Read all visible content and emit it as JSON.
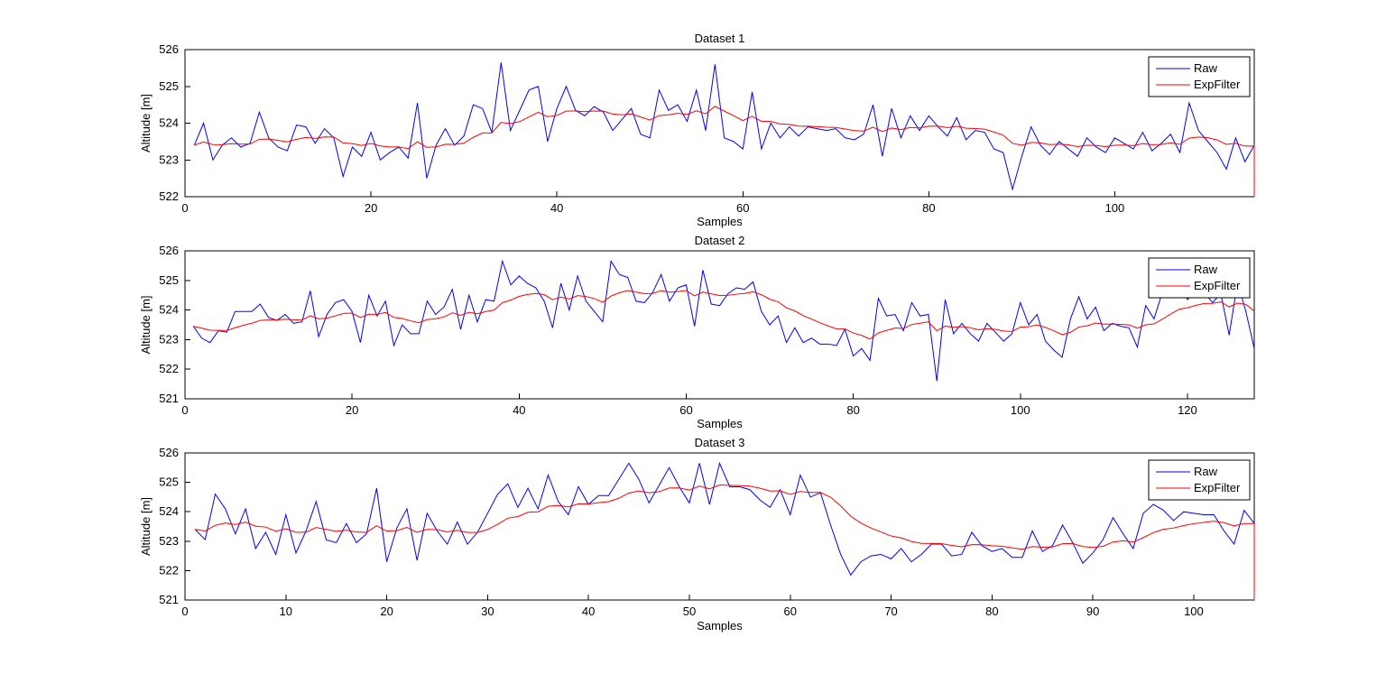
{
  "figure": {
    "background": "#ffffff",
    "axis_color": "#000000",
    "raw_color": "#0000ff",
    "filter_color": "#ff0000"
  },
  "chart_data": [
    {
      "type": "line",
      "title": "Dataset 1",
      "xlabel": "Samples",
      "ylabel": "Altitude [m]",
      "xlim": [
        0,
        115
      ],
      "ylim": [
        522,
        526
      ],
      "xticks": [
        0,
        20,
        40,
        60,
        80,
        100
      ],
      "yticks": [
        522,
        523,
        524,
        525,
        526
      ],
      "grid": false,
      "legend": {
        "position": "top-right",
        "entries": [
          "Raw",
          "ExpFilter"
        ]
      },
      "series": [
        {
          "name": "Raw",
          "color": "#0000ff",
          "x_start": 1,
          "values": [
            523.4,
            524.0,
            523.0,
            523.4,
            523.6,
            523.35,
            523.45,
            524.3,
            523.6,
            523.35,
            523.25,
            523.95,
            523.9,
            523.45,
            523.85,
            523.6,
            522.55,
            523.35,
            523.1,
            523.75,
            523.0,
            523.2,
            523.35,
            523.05,
            524.55,
            522.5,
            523.4,
            523.85,
            523.4,
            523.65,
            524.5,
            524.4,
            523.75,
            525.65,
            523.8,
            524.35,
            524.9,
            525.0,
            523.5,
            524.4,
            525.0,
            524.35,
            524.2,
            524.45,
            524.3,
            523.8,
            524.1,
            524.4,
            523.7,
            523.6,
            524.9,
            524.35,
            524.5,
            524.05,
            524.9,
            523.8,
            525.6,
            523.6,
            523.5,
            523.3,
            524.85,
            523.3,
            524.0,
            523.6,
            523.9,
            523.65,
            523.9,
            523.85,
            523.8,
            523.85,
            523.6,
            523.55,
            523.7,
            524.5,
            523.1,
            524.4,
            523.6,
            524.2,
            523.8,
            524.2,
            523.9,
            523.65,
            524.15,
            523.55,
            523.8,
            523.75,
            523.3,
            523.2,
            522.2,
            523.1,
            523.9,
            523.4,
            523.15,
            523.5,
            523.3,
            523.1,
            523.6,
            523.35,
            523.2,
            523.6,
            523.45,
            523.3,
            523.75,
            523.25,
            523.45,
            523.7,
            523.2,
            524.55,
            523.8,
            523.5,
            523.2,
            522.75,
            523.6,
            522.95,
            523.4
          ]
        },
        {
          "name": "ExpFilter",
          "color": "#ff0000",
          "derived": "exponential_filter_of_Raw",
          "alpha": 0.15,
          "end_drop_to": 522
        }
      ]
    },
    {
      "type": "line",
      "title": "Dataset 2",
      "xlabel": "Samples",
      "ylabel": "Altitude [m]",
      "xlim": [
        0,
        128
      ],
      "ylim": [
        521,
        526
      ],
      "xticks": [
        0,
        20,
        40,
        60,
        80,
        100,
        120
      ],
      "yticks": [
        521,
        522,
        523,
        524,
        525,
        526
      ],
      "grid": false,
      "legend": {
        "position": "top-right",
        "entries": [
          "Raw",
          "ExpFilter"
        ]
      },
      "series": [
        {
          "name": "Raw",
          "color": "#0000ff",
          "x_start": 1,
          "values": [
            523.45,
            523.05,
            522.9,
            523.3,
            523.25,
            523.95,
            523.95,
            523.95,
            524.2,
            523.75,
            523.65,
            523.85,
            523.55,
            523.6,
            524.65,
            523.1,
            523.85,
            524.25,
            524.35,
            523.95,
            522.9,
            524.5,
            523.8,
            524.3,
            522.8,
            523.5,
            523.2,
            523.2,
            524.3,
            523.85,
            524.1,
            524.7,
            523.35,
            524.5,
            523.6,
            524.35,
            524.3,
            525.65,
            524.85,
            525.15,
            524.9,
            524.75,
            524.3,
            523.4,
            524.9,
            524.0,
            525.15,
            524.3,
            523.95,
            523.6,
            525.65,
            525.2,
            525.1,
            524.3,
            524.25,
            524.6,
            525.2,
            524.3,
            524.75,
            524.85,
            523.45,
            525.35,
            524.2,
            524.15,
            524.55,
            524.75,
            524.7,
            524.95,
            523.95,
            523.5,
            523.8,
            522.9,
            523.4,
            522.9,
            523.05,
            522.85,
            522.85,
            522.8,
            523.35,
            522.45,
            522.7,
            522.3,
            524.4,
            523.8,
            523.85,
            523.3,
            524.25,
            523.8,
            523.85,
            521.6,
            524.35,
            523.2,
            523.55,
            523.2,
            522.95,
            523.55,
            523.25,
            522.95,
            523.2,
            524.25,
            523.5,
            523.85,
            522.95,
            522.65,
            522.4,
            523.7,
            524.45,
            523.7,
            524.1,
            523.3,
            523.55,
            523.45,
            523.4,
            522.75,
            524.15,
            523.7,
            524.6,
            524.85,
            524.95,
            524.35,
            524.6,
            524.6,
            524.25,
            524.55,
            523.15,
            524.95,
            523.95,
            522.7
          ]
        },
        {
          "name": "ExpFilter",
          "color": "#ff0000",
          "derived": "exponential_filter_of_Raw",
          "alpha": 0.15
        }
      ]
    },
    {
      "type": "line",
      "title": "Dataset 3",
      "xlabel": "Samples",
      "ylabel": "Altitude [m]",
      "xlim": [
        0,
        106
      ],
      "ylim": [
        521,
        526
      ],
      "xticks": [
        0,
        10,
        20,
        30,
        40,
        50,
        60,
        70,
        80,
        90,
        100
      ],
      "yticks": [
        521,
        522,
        523,
        524,
        525,
        526
      ],
      "grid": false,
      "legend": {
        "position": "top-right",
        "entries": [
          "Raw",
          "ExpFilter"
        ]
      },
      "series": [
        {
          "name": "Raw",
          "color": "#0000ff",
          "x_start": 1,
          "values": [
            523.4,
            523.05,
            524.6,
            524.1,
            523.25,
            524.1,
            522.75,
            523.3,
            522.55,
            523.9,
            522.6,
            523.35,
            524.35,
            523.05,
            522.95,
            523.6,
            522.95,
            523.25,
            524.8,
            522.3,
            523.45,
            524.1,
            522.35,
            523.95,
            523.35,
            522.9,
            523.65,
            522.9,
            523.3,
            523.95,
            524.6,
            524.95,
            524.15,
            524.8,
            524.1,
            525.25,
            524.35,
            523.9,
            524.85,
            524.25,
            524.55,
            524.55,
            525.1,
            525.65,
            525.1,
            524.3,
            524.9,
            525.5,
            524.85,
            524.3,
            525.65,
            524.25,
            525.65,
            524.85,
            524.85,
            524.75,
            524.4,
            524.15,
            524.75,
            523.9,
            525.25,
            524.5,
            524.65,
            523.55,
            522.55,
            521.85,
            522.3,
            522.5,
            522.55,
            522.4,
            522.75,
            522.3,
            522.55,
            522.9,
            522.9,
            522.5,
            522.55,
            523.3,
            522.85,
            522.65,
            522.75,
            522.45,
            522.45,
            523.35,
            522.65,
            522.85,
            523.55,
            522.95,
            522.25,
            522.6,
            523.05,
            523.8,
            523.25,
            522.75,
            523.95,
            524.25,
            524.05,
            523.7,
            524.0,
            523.95,
            523.9,
            523.9,
            523.35,
            522.9,
            524.05,
            523.6
          ]
        },
        {
          "name": "ExpFilter",
          "color": "#ff0000",
          "derived": "exponential_filter_of_Raw",
          "alpha": 0.15,
          "end_drop_to": 521
        }
      ]
    }
  ]
}
